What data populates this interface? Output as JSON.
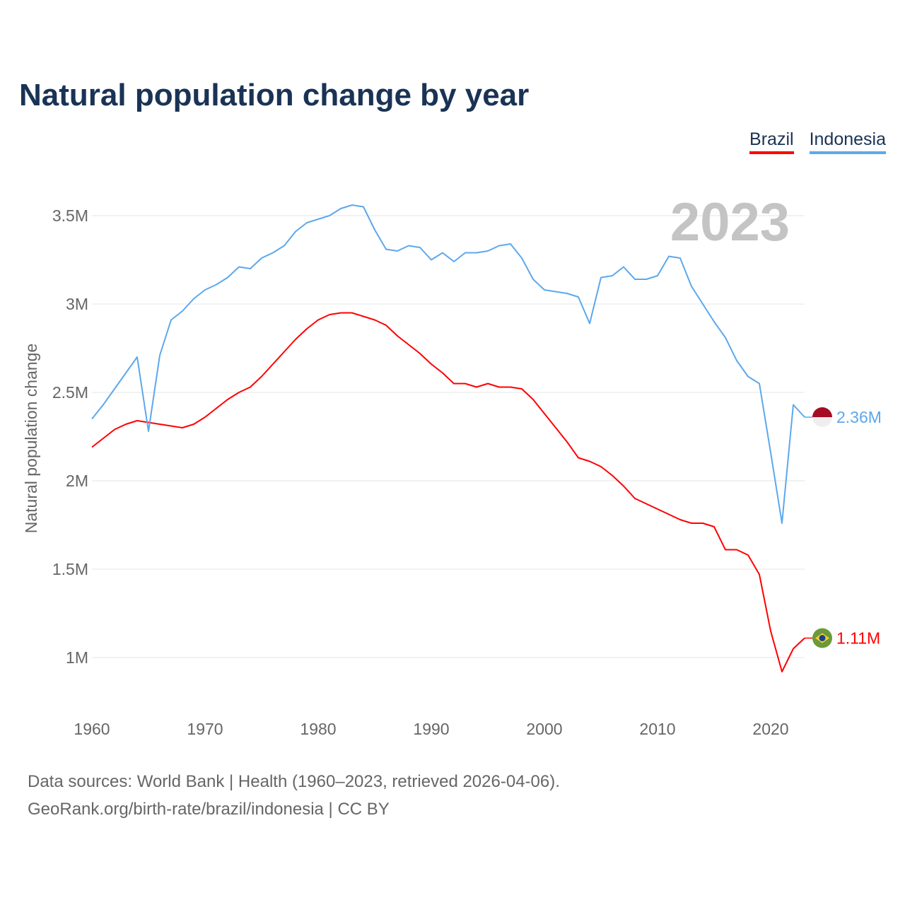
{
  "footer": {
    "line1": "Data sources: World Bank | Health (1960–2023, retrieved 2026-04-06).",
    "line2": "GeoRank.org/birth-rate/brazil/indonesia | CC BY"
  },
  "chart_data": {
    "type": "line",
    "title": "Natural population change by year",
    "ylabel": "Natural population change",
    "xlabel": "",
    "year_label": "2023",
    "xlim": [
      1960,
      2023
    ],
    "ylim": [
      0.7,
      3.8
    ],
    "x_ticks": [
      1960,
      1970,
      1980,
      1990,
      2000,
      2010,
      2020
    ],
    "y_ticks": [
      {
        "v": 1,
        "label": "1M"
      },
      {
        "v": 1.5,
        "label": "1.5M"
      },
      {
        "v": 2,
        "label": "2M"
      },
      {
        "v": 2.5,
        "label": "2.5M"
      },
      {
        "v": 3,
        "label": "3M"
      },
      {
        "v": 3.5,
        "label": "3.5M"
      }
    ],
    "grid": true,
    "legend_position": "top-right",
    "units": "millions",
    "x": [
      1960,
      1961,
      1962,
      1963,
      1964,
      1965,
      1966,
      1967,
      1968,
      1969,
      1970,
      1971,
      1972,
      1973,
      1974,
      1975,
      1976,
      1977,
      1978,
      1979,
      1980,
      1981,
      1982,
      1983,
      1984,
      1985,
      1986,
      1987,
      1988,
      1989,
      1990,
      1991,
      1992,
      1993,
      1994,
      1995,
      1996,
      1997,
      1998,
      1999,
      2000,
      2001,
      2002,
      2003,
      2004,
      2005,
      2006,
      2007,
      2008,
      2009,
      2010,
      2011,
      2012,
      2013,
      2014,
      2015,
      2016,
      2017,
      2018,
      2019,
      2020,
      2021,
      2022,
      2023
    ],
    "series": [
      {
        "name": "Brazil",
        "color": "#ff0000",
        "end_label": "1.11M",
        "flag": "brazil-flag",
        "values": [
          2.19,
          2.24,
          2.29,
          2.32,
          2.34,
          2.33,
          2.32,
          2.31,
          2.3,
          2.32,
          2.36,
          2.41,
          2.46,
          2.5,
          2.53,
          2.59,
          2.66,
          2.73,
          2.8,
          2.86,
          2.91,
          2.94,
          2.95,
          2.95,
          2.93,
          2.91,
          2.88,
          2.82,
          2.77,
          2.72,
          2.66,
          2.61,
          2.55,
          2.55,
          2.53,
          2.55,
          2.53,
          2.53,
          2.52,
          2.46,
          2.38,
          2.3,
          2.22,
          2.13,
          2.11,
          2.08,
          2.03,
          1.97,
          1.9,
          1.87,
          1.84,
          1.81,
          1.78,
          1.76,
          1.76,
          1.74,
          1.61,
          1.61,
          1.58,
          1.47,
          1.15,
          0.92,
          1.05,
          1.11
        ]
      },
      {
        "name": "Indonesia",
        "color": "#5ca8ec",
        "end_label": "2.36M",
        "flag": "indonesia-flag",
        "values": [
          2.35,
          2.43,
          2.52,
          2.61,
          2.7,
          2.28,
          2.71,
          2.91,
          2.96,
          3.03,
          3.08,
          3.11,
          3.15,
          3.21,
          3.2,
          3.26,
          3.29,
          3.33,
          3.41,
          3.46,
          3.48,
          3.5,
          3.54,
          3.56,
          3.55,
          3.42,
          3.31,
          3.3,
          3.33,
          3.32,
          3.25,
          3.29,
          3.24,
          3.29,
          3.29,
          3.3,
          3.33,
          3.34,
          3.26,
          3.14,
          3.08,
          3.07,
          3.06,
          3.04,
          2.89,
          3.15,
          3.16,
          3.21,
          3.14,
          3.14,
          3.16,
          3.27,
          3.26,
          3.1,
          3.0,
          2.9,
          2.81,
          2.68,
          2.59,
          2.55,
          2.16,
          1.76,
          2.43,
          2.36
        ]
      }
    ]
  }
}
